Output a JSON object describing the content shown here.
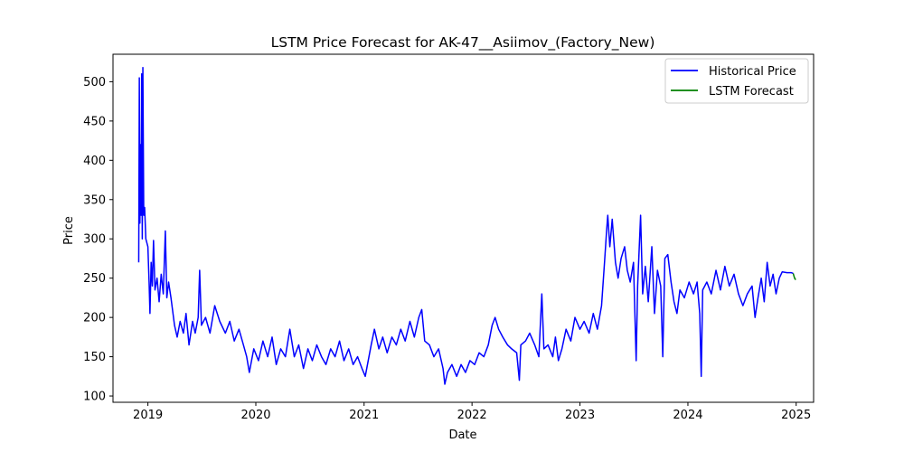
{
  "chart_data": {
    "type": "line",
    "title": "LSTM Price Forecast for AK-47__Asiimov_(Factory_New)",
    "xlabel": "Date",
    "ylabel": "Price",
    "xlim": [
      "2018-09-05",
      "2025-03-01"
    ],
    "ylim": [
      92,
      535
    ],
    "xticks": [
      "2019",
      "2020",
      "2021",
      "2022",
      "2023",
      "2024",
      "2025"
    ],
    "yticks": [
      100,
      150,
      200,
      250,
      300,
      350,
      400,
      450,
      500
    ],
    "grid": false,
    "legend_position": "top-right",
    "series": [
      {
        "name": "Historical Price",
        "color": "#0000ff",
        "points": [
          [
            "2018-12-01",
            270
          ],
          [
            "2018-12-03",
            505
          ],
          [
            "2018-12-05",
            320
          ],
          [
            "2018-12-07",
            420
          ],
          [
            "2018-12-09",
            330
          ],
          [
            "2018-12-11",
            510
          ],
          [
            "2018-12-13",
            300
          ],
          [
            "2018-12-15",
            518
          ],
          [
            "2018-12-18",
            330
          ],
          [
            "2018-12-21",
            340
          ],
          [
            "2018-12-25",
            300
          ],
          [
            "2019-01-01",
            290
          ],
          [
            "2019-01-05",
            245
          ],
          [
            "2019-01-08",
            205
          ],
          [
            "2019-01-12",
            270
          ],
          [
            "2019-01-16",
            240
          ],
          [
            "2019-01-20",
            298
          ],
          [
            "2019-01-25",
            235
          ],
          [
            "2019-02-01",
            250
          ],
          [
            "2019-02-08",
            220
          ],
          [
            "2019-02-15",
            255
          ],
          [
            "2019-02-22",
            230
          ],
          [
            "2019-03-01",
            310
          ],
          [
            "2019-03-06",
            225
          ],
          [
            "2019-03-12",
            245
          ],
          [
            "2019-03-20",
            225
          ],
          [
            "2019-04-01",
            190
          ],
          [
            "2019-04-10",
            175
          ],
          [
            "2019-04-20",
            195
          ],
          [
            "2019-05-01",
            180
          ],
          [
            "2019-05-10",
            205
          ],
          [
            "2019-05-20",
            165
          ],
          [
            "2019-06-01",
            195
          ],
          [
            "2019-06-10",
            180
          ],
          [
            "2019-06-20",
            200
          ],
          [
            "2019-06-25",
            260
          ],
          [
            "2019-07-01",
            190
          ],
          [
            "2019-07-15",
            200
          ],
          [
            "2019-07-30",
            180
          ],
          [
            "2019-08-15",
            215
          ],
          [
            "2019-09-01",
            195
          ],
          [
            "2019-09-20",
            180
          ],
          [
            "2019-10-05",
            195
          ],
          [
            "2019-10-20",
            170
          ],
          [
            "2019-11-05",
            185
          ],
          [
            "2019-11-20",
            165
          ],
          [
            "2019-12-01",
            150
          ],
          [
            "2019-12-10",
            130
          ],
          [
            "2019-12-25",
            160
          ],
          [
            "2020-01-10",
            145
          ],
          [
            "2020-01-25",
            170
          ],
          [
            "2020-02-10",
            150
          ],
          [
            "2020-02-25",
            175
          ],
          [
            "2020-03-10",
            140
          ],
          [
            "2020-03-25",
            160
          ],
          [
            "2020-04-10",
            150
          ],
          [
            "2020-04-25",
            185
          ],
          [
            "2020-05-10",
            150
          ],
          [
            "2020-05-25",
            165
          ],
          [
            "2020-06-10",
            135
          ],
          [
            "2020-06-25",
            160
          ],
          [
            "2020-07-10",
            145
          ],
          [
            "2020-07-25",
            165
          ],
          [
            "2020-08-10",
            150
          ],
          [
            "2020-08-25",
            140
          ],
          [
            "2020-09-10",
            160
          ],
          [
            "2020-09-25",
            150
          ],
          [
            "2020-10-10",
            170
          ],
          [
            "2020-10-25",
            145
          ],
          [
            "2020-11-10",
            160
          ],
          [
            "2020-11-25",
            140
          ],
          [
            "2020-12-10",
            150
          ],
          [
            "2020-12-25",
            135
          ],
          [
            "2021-01-05",
            125
          ],
          [
            "2021-01-15",
            145
          ],
          [
            "2021-01-25",
            165
          ],
          [
            "2021-02-05",
            185
          ],
          [
            "2021-02-20",
            160
          ],
          [
            "2021-03-05",
            175
          ],
          [
            "2021-03-20",
            155
          ],
          [
            "2021-04-05",
            175
          ],
          [
            "2021-04-20",
            165
          ],
          [
            "2021-05-05",
            185
          ],
          [
            "2021-05-20",
            170
          ],
          [
            "2021-06-05",
            195
          ],
          [
            "2021-06-20",
            175
          ],
          [
            "2021-07-05",
            200
          ],
          [
            "2021-07-15",
            210
          ],
          [
            "2021-07-25",
            170
          ],
          [
            "2021-08-10",
            165
          ],
          [
            "2021-08-25",
            150
          ],
          [
            "2021-09-10",
            160
          ],
          [
            "2021-09-25",
            135
          ],
          [
            "2021-10-01",
            115
          ],
          [
            "2021-10-10",
            130
          ],
          [
            "2021-10-25",
            140
          ],
          [
            "2021-11-10",
            125
          ],
          [
            "2021-11-25",
            140
          ],
          [
            "2021-12-10",
            130
          ],
          [
            "2021-12-25",
            145
          ],
          [
            "2022-01-10",
            140
          ],
          [
            "2022-01-25",
            155
          ],
          [
            "2022-02-10",
            150
          ],
          [
            "2022-02-25",
            165
          ],
          [
            "2022-03-10",
            190
          ],
          [
            "2022-03-20",
            200
          ],
          [
            "2022-04-01",
            185
          ],
          [
            "2022-04-15",
            175
          ],
          [
            "2022-05-01",
            165
          ],
          [
            "2022-05-15",
            160
          ],
          [
            "2022-06-01",
            155
          ],
          [
            "2022-06-10",
            120
          ],
          [
            "2022-06-15",
            165
          ],
          [
            "2022-07-01",
            170
          ],
          [
            "2022-07-15",
            180
          ],
          [
            "2022-08-01",
            165
          ],
          [
            "2022-08-15",
            150
          ],
          [
            "2022-08-25",
            230
          ],
          [
            "2022-09-01",
            160
          ],
          [
            "2022-09-15",
            165
          ],
          [
            "2022-10-01",
            150
          ],
          [
            "2022-10-10",
            175
          ],
          [
            "2022-10-20",
            145
          ],
          [
            "2022-11-01",
            160
          ],
          [
            "2022-11-15",
            185
          ],
          [
            "2022-12-01",
            170
          ],
          [
            "2022-12-15",
            200
          ],
          [
            "2023-01-01",
            185
          ],
          [
            "2023-01-15",
            195
          ],
          [
            "2023-02-01",
            180
          ],
          [
            "2023-02-15",
            205
          ],
          [
            "2023-03-01",
            185
          ],
          [
            "2023-03-15",
            215
          ],
          [
            "2023-03-25",
            270
          ],
          [
            "2023-04-01",
            310
          ],
          [
            "2023-04-05",
            330
          ],
          [
            "2023-04-12",
            290
          ],
          [
            "2023-04-20",
            325
          ],
          [
            "2023-05-01",
            270
          ],
          [
            "2023-05-10",
            250
          ],
          [
            "2023-05-20",
            275
          ],
          [
            "2023-06-01",
            290
          ],
          [
            "2023-06-10",
            260
          ],
          [
            "2023-06-20",
            245
          ],
          [
            "2023-07-01",
            270
          ],
          [
            "2023-07-10",
            145
          ],
          [
            "2023-07-15",
            240
          ],
          [
            "2023-07-25",
            330
          ],
          [
            "2023-08-01",
            230
          ],
          [
            "2023-08-10",
            265
          ],
          [
            "2023-08-20",
            220
          ],
          [
            "2023-09-01",
            290
          ],
          [
            "2023-09-10",
            205
          ],
          [
            "2023-09-20",
            260
          ],
          [
            "2023-10-01",
            240
          ],
          [
            "2023-10-08",
            150
          ],
          [
            "2023-10-15",
            275
          ],
          [
            "2023-10-25",
            280
          ],
          [
            "2023-11-05",
            245
          ],
          [
            "2023-11-15",
            220
          ],
          [
            "2023-11-25",
            205
          ],
          [
            "2023-12-05",
            235
          ],
          [
            "2023-12-20",
            225
          ],
          [
            "2024-01-05",
            245
          ],
          [
            "2024-01-20",
            230
          ],
          [
            "2024-02-01",
            245
          ],
          [
            "2024-02-10",
            205
          ],
          [
            "2024-02-15",
            125
          ],
          [
            "2024-02-20",
            235
          ],
          [
            "2024-03-05",
            245
          ],
          [
            "2024-03-20",
            230
          ],
          [
            "2024-04-05",
            260
          ],
          [
            "2024-04-20",
            235
          ],
          [
            "2024-05-05",
            265
          ],
          [
            "2024-05-20",
            240
          ],
          [
            "2024-06-05",
            255
          ],
          [
            "2024-06-20",
            230
          ],
          [
            "2024-07-05",
            215
          ],
          [
            "2024-07-20",
            230
          ],
          [
            "2024-08-05",
            240
          ],
          [
            "2024-08-15",
            200
          ],
          [
            "2024-08-25",
            225
          ],
          [
            "2024-09-05",
            250
          ],
          [
            "2024-09-15",
            220
          ],
          [
            "2024-09-25",
            270
          ],
          [
            "2024-10-05",
            240
          ],
          [
            "2024-10-15",
            255
          ],
          [
            "2024-10-25",
            230
          ],
          [
            "2024-11-05",
            250
          ],
          [
            "2024-11-15",
            258
          ],
          [
            "2024-12-01",
            257
          ],
          [
            "2024-12-15",
            257
          ],
          [
            "2024-12-22",
            256
          ]
        ]
      },
      {
        "name": "LSTM Forecast",
        "color": "#008000",
        "points": [
          [
            "2024-12-22",
            256
          ],
          [
            "2024-12-25",
            252
          ],
          [
            "2024-12-28",
            249
          ],
          [
            "2024-12-31",
            248
          ]
        ]
      }
    ]
  }
}
